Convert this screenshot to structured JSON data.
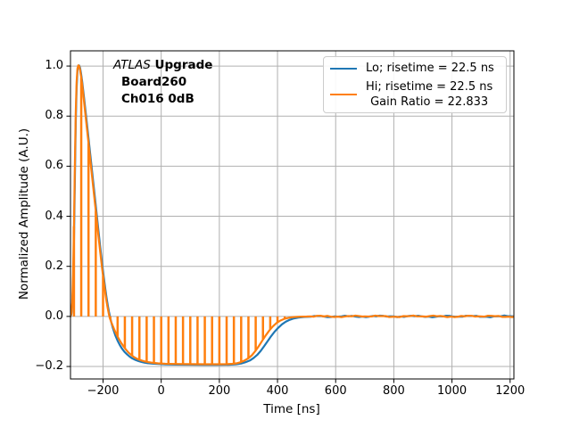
{
  "annotation": {
    "atlas": "ATLAS",
    "upgrade": " Upgrade",
    "line2": "Board260",
    "line3": "Ch016 0dB"
  },
  "legend": {
    "position": "upper right",
    "border_color": "#cccccc",
    "background": "#ffffff",
    "entries": [
      {
        "color": "#1f77b4",
        "label": "Lo; risetime = 22.5 ns"
      },
      {
        "color": "#ff7f0e",
        "label_line1": "Hi; risetime = 22.5 ns",
        "label_line2": "Gain Ratio = 22.833"
      }
    ]
  },
  "chart_data": {
    "type": "line",
    "title": "",
    "xlabel": "Time [ns]",
    "ylabel": "Normalized Amplitude (A.U.)",
    "xlim": [
      -312,
      1213
    ],
    "ylim": [
      -0.2498,
      1.0608
    ],
    "x_ticks": [
      -200,
      0,
      200,
      400,
      600,
      800,
      1000,
      1200
    ],
    "x_tick_labels": [
      "−200",
      "0",
      "200",
      "400",
      "600",
      "800",
      "1000",
      "1200"
    ],
    "y_ticks": [
      -0.2,
      0.0,
      0.2,
      0.4,
      0.6,
      0.8,
      1.0
    ],
    "y_tick_labels": [
      "−0.2",
      "0.0",
      "0.2",
      "0.4",
      "0.6",
      "0.8",
      "1.0"
    ],
    "grid": true,
    "grid_color": "#b0b0b0",
    "axes_edge_color": "#000000",
    "background_color": "#ffffff",
    "legend_position": "upper right",
    "series": [
      {
        "name": "Lo; risetime = 22.5 ns",
        "color": "#1f77b4",
        "linewidth": 2.2,
        "points": [
          [
            -312,
            0.0
          ],
          [
            -309,
            0.008
          ],
          [
            -306,
            0.04
          ],
          [
            -303,
            0.13
          ],
          [
            -300,
            0.3
          ],
          [
            -297,
            0.54
          ],
          [
            -294,
            0.77
          ],
          [
            -291,
            0.91
          ],
          [
            -288,
            0.98
          ],
          [
            -285,
            1.002
          ],
          [
            -282,
            1.002
          ],
          [
            -279,
            0.993
          ],
          [
            -276,
            0.973
          ],
          [
            -272,
            0.94
          ],
          [
            -266,
            0.88
          ],
          [
            -258,
            0.797
          ],
          [
            -250,
            0.712
          ],
          [
            -242,
            0.626
          ],
          [
            -234,
            0.539
          ],
          [
            -226,
            0.453
          ],
          [
            -218,
            0.366
          ],
          [
            -210,
            0.28
          ],
          [
            -203,
            0.209
          ],
          [
            -197,
            0.152
          ],
          [
            -192,
            0.108
          ],
          [
            -188,
            0.075
          ],
          [
            -184,
            0.046
          ],
          [
            -180,
            0.02
          ],
          [
            -176,
            -0.001
          ],
          [
            -172,
            -0.022
          ],
          [
            -166,
            -0.047
          ],
          [
            -158,
            -0.075
          ],
          [
            -150,
            -0.097
          ],
          [
            -142,
            -0.115
          ],
          [
            -134,
            -0.13
          ],
          [
            -126,
            -0.142
          ],
          [
            -117,
            -0.152
          ],
          [
            -108,
            -0.161
          ],
          [
            -99,
            -0.168
          ],
          [
            -89,
            -0.1735
          ],
          [
            -79,
            -0.178
          ],
          [
            -69,
            -0.1815
          ],
          [
            -58,
            -0.1845
          ],
          [
            -47,
            -0.1865
          ],
          [
            -30,
            -0.1885
          ],
          [
            -10,
            -0.19
          ],
          [
            15,
            -0.1915
          ],
          [
            50,
            -0.1925
          ],
          [
            100,
            -0.193
          ],
          [
            150,
            -0.1935
          ],
          [
            200,
            -0.1935
          ],
          [
            235,
            -0.193
          ],
          [
            258,
            -0.191
          ],
          [
            275,
            -0.188
          ],
          [
            290,
            -0.183
          ],
          [
            305,
            -0.176
          ],
          [
            318,
            -0.166
          ],
          [
            330,
            -0.154
          ],
          [
            342,
            -0.138
          ],
          [
            354,
            -0.119
          ],
          [
            366,
            -0.099
          ],
          [
            378,
            -0.079
          ],
          [
            390,
            -0.061
          ],
          [
            402,
            -0.046
          ],
          [
            415,
            -0.032
          ],
          [
            428,
            -0.0215
          ],
          [
            442,
            -0.0135
          ],
          [
            456,
            -0.008
          ],
          [
            472,
            -0.0045
          ],
          [
            490,
            -0.0025
          ],
          [
            515,
            -0.0012
          ],
          [
            560,
            -0.0005
          ],
          [
            620,
            0.0
          ],
          [
            800,
            0.0
          ],
          [
            1000,
            0.0
          ],
          [
            1213,
            0.0
          ]
        ]
      },
      {
        "name": "Hi; risetime = 22.5 ns  Gain Ratio = 22.833",
        "color": "#ff7f0e",
        "linewidth": 2.2,
        "points": [
          [
            -312,
            0.0
          ],
          [
            -309,
            0.012
          ],
          [
            -306,
            0.055
          ],
          [
            -303,
            0.17
          ],
          [
            -300,
            0.36
          ],
          [
            -297,
            0.6
          ],
          [
            -294,
            0.81
          ],
          [
            -291,
            0.935
          ],
          [
            -288,
            0.99
          ],
          [
            -285,
            1.003
          ],
          [
            -282,
            1.0
          ],
          [
            -279,
            0.985
          ],
          [
            -276,
            0.962
          ],
          [
            -272,
            0.928
          ],
          [
            -266,
            0.865
          ],
          [
            -258,
            0.778
          ],
          [
            -250,
            0.692
          ],
          [
            -242,
            0.605
          ],
          [
            -234,
            0.518
          ],
          [
            -226,
            0.432
          ],
          [
            -218,
            0.345
          ],
          [
            -210,
            0.26
          ],
          [
            -203,
            0.19
          ],
          [
            -197,
            0.134
          ],
          [
            -192,
            0.092
          ],
          [
            -188,
            0.06
          ],
          [
            -184,
            0.033
          ],
          [
            -180,
            0.009
          ],
          [
            -177,
            -0.006
          ],
          [
            -170,
            -0.028
          ],
          [
            -162,
            -0.051
          ],
          [
            -154,
            -0.071
          ],
          [
            -146,
            -0.089
          ],
          [
            -138,
            -0.105
          ],
          [
            -130,
            -0.119
          ],
          [
            -121,
            -0.133
          ],
          [
            -112,
            -0.145
          ],
          [
            -103,
            -0.154
          ],
          [
            -94,
            -0.162
          ],
          [
            -85,
            -0.168
          ],
          [
            -75,
            -0.173
          ],
          [
            -65,
            -0.177
          ],
          [
            -55,
            -0.18
          ],
          [
            -45,
            -0.1825
          ],
          [
            -30,
            -0.185
          ],
          [
            -10,
            -0.1875
          ],
          [
            15,
            -0.189
          ],
          [
            50,
            -0.19
          ],
          [
            100,
            -0.1905
          ],
          [
            150,
            -0.191
          ],
          [
            200,
            -0.191
          ],
          [
            228,
            -0.1905
          ],
          [
            245,
            -0.1893
          ],
          [
            258,
            -0.1875
          ],
          [
            272,
            -0.1835
          ],
          [
            285,
            -0.177
          ],
          [
            300,
            -0.167
          ],
          [
            312,
            -0.155
          ],
          [
            324,
            -0.138
          ],
          [
            336,
            -0.118
          ],
          [
            348,
            -0.096
          ],
          [
            360,
            -0.075
          ],
          [
            372,
            -0.056
          ],
          [
            384,
            -0.04
          ],
          [
            396,
            -0.027
          ],
          [
            410,
            -0.0165
          ],
          [
            425,
            -0.009
          ],
          [
            440,
            -0.005
          ],
          [
            455,
            -0.0025
          ],
          [
            475,
            -0.0012
          ],
          [
            500,
            -0.0005
          ],
          [
            560,
            0.0
          ],
          [
            700,
            0.0
          ],
          [
            900,
            0.0
          ],
          [
            1100,
            0.0
          ],
          [
            1213,
            0.0
          ]
        ]
      }
    ],
    "comb": {
      "description": "vertical sample lines from baseline 0 to Hi curve every 25 ns",
      "series": "Hi",
      "color": "#ff7f0e",
      "baseline": 0,
      "t_start": -300,
      "t_step": 25,
      "t_end": 425,
      "linewidth": 2.5
    }
  }
}
